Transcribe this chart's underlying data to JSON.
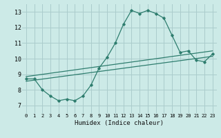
{
  "title": "",
  "xlabel": "Humidex (Indice chaleur)",
  "bg_color": "#cceae7",
  "grid_color": "#aacccc",
  "line_color": "#2e7d6e",
  "xlim": [
    -0.5,
    23.5
  ],
  "ylim": [
    6.5,
    13.5
  ],
  "xticks": [
    0,
    1,
    2,
    3,
    4,
    5,
    6,
    7,
    8,
    9,
    10,
    11,
    12,
    13,
    14,
    15,
    16,
    17,
    18,
    19,
    20,
    21,
    22,
    23
  ],
  "yticks": [
    7,
    8,
    9,
    10,
    11,
    12,
    13
  ],
  "curve1_x": [
    0,
    1,
    2,
    3,
    4,
    5,
    6,
    7,
    8,
    9,
    10,
    11,
    12,
    13,
    14,
    15,
    16,
    17,
    18,
    19,
    20,
    21,
    22,
    23
  ],
  "curve1_y": [
    8.7,
    8.7,
    8.0,
    7.6,
    7.3,
    7.4,
    7.3,
    7.6,
    8.3,
    9.4,
    10.1,
    11.0,
    12.2,
    13.1,
    12.9,
    13.1,
    12.9,
    12.6,
    11.5,
    10.4,
    10.5,
    9.9,
    9.8,
    10.3
  ],
  "line2_x": [
    0,
    23
  ],
  "line2_y": [
    8.55,
    10.15
  ],
  "line3_x": [
    0,
    23
  ],
  "line3_y": [
    8.85,
    10.5
  ]
}
